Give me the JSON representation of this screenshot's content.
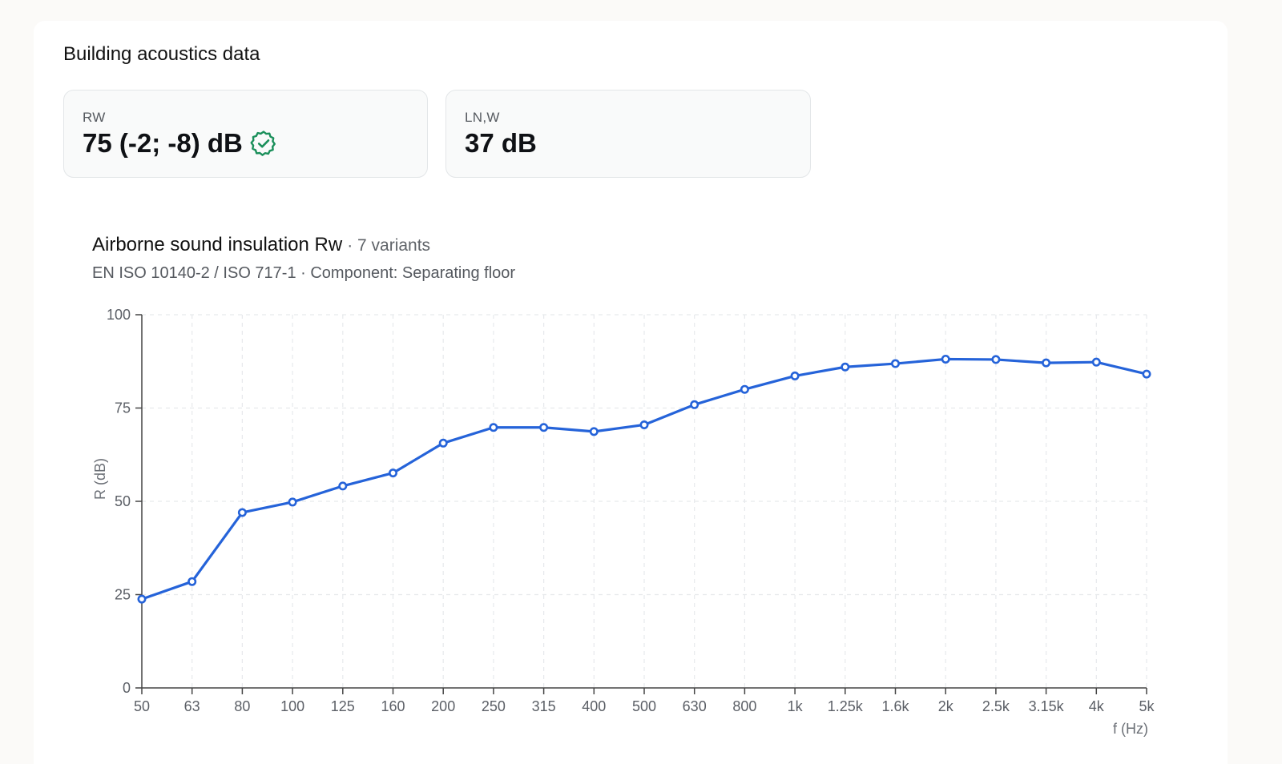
{
  "section": {
    "title": "Building acoustics data"
  },
  "cards": [
    {
      "label": "RW",
      "value": "75 (-2; -8) dB",
      "verified": true,
      "badge_icon": "verified-badge-icon"
    },
    {
      "label": "LN,W",
      "value": "37 dB"
    }
  ],
  "colors": {
    "line": "#2563d9",
    "badge": "#1a8f5a",
    "grid": "#e7e9ec",
    "axis": "#444444"
  },
  "chart_data": {
    "type": "line",
    "title": "Airborne sound insulation Rw",
    "title_suffix": "· 7 variants",
    "subtitle": "EN ISO 10140-2 / ISO 717-1 · Component: Separating floor",
    "xlabel": "f (Hz)",
    "ylabel": "R (dB)",
    "ylim": [
      0,
      100
    ],
    "yticks": [
      "0",
      "25",
      "50",
      "75",
      "100"
    ],
    "grid": true,
    "categories": [
      "50",
      "63",
      "80",
      "100",
      "125",
      "160",
      "200",
      "250",
      "315",
      "400",
      "500",
      "630",
      "800",
      "1k",
      "1.25k",
      "1.6k",
      "2k",
      "2.5k",
      "3.15k",
      "4k",
      "5k"
    ],
    "series": [
      {
        "values": [
          23.8,
          28.5,
          47.0,
          49.8,
          54.1,
          57.6,
          65.6,
          69.8,
          69.8,
          68.7,
          70.5,
          75.9,
          80.0,
          83.6,
          86.0,
          86.9,
          88.1,
          88.0,
          87.1,
          87.3,
          84.1
        ]
      }
    ]
  }
}
